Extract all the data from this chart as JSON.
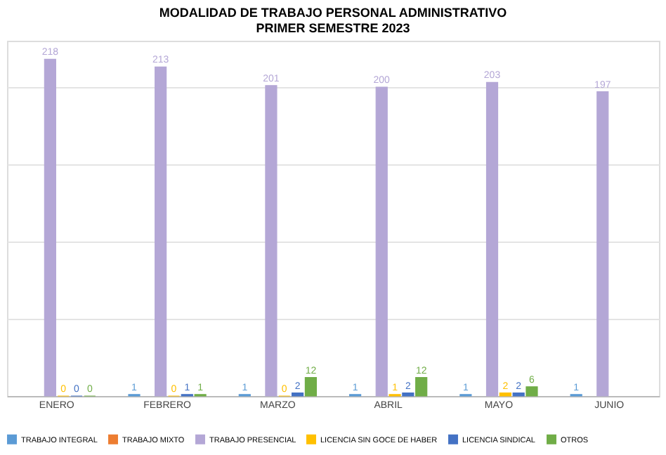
{
  "chart_data": {
    "type": "bar",
    "title": [
      "MODALIDAD DE TRABAJO PERSONAL ADMINISTRATIVO",
      "PRIMER SEMESTRE 2023"
    ],
    "categories": [
      "ENERO",
      "FEBRERO",
      "MARZO",
      "ABRIL",
      "MAYO",
      "JUNIO"
    ],
    "series": [
      {
        "name": "TRABAJO INTEGRAL",
        "color": "#5b9bd5",
        "values": [
          null,
          1,
          1,
          1,
          1,
          1
        ]
      },
      {
        "name": "TRABAJO MIXTO",
        "color": "#ed7d31",
        "values": [
          null,
          null,
          null,
          null,
          null,
          null
        ]
      },
      {
        "name": "TRABAJO PRESENCIAL",
        "color": "#b4a7d6",
        "values": [
          218,
          213,
          201,
          200,
          203,
          197
        ]
      },
      {
        "name": "LICENCIA SIN GOCE DE HABER",
        "color": "#ffc000",
        "values": [
          0,
          0,
          0,
          1,
          2,
          null
        ]
      },
      {
        "name": "LICENCIA SINDICAL",
        "color": "#4472c4",
        "values": [
          0,
          1,
          2,
          2,
          2,
          null
        ]
      },
      {
        "name": "OTROS",
        "color": "#70ad47",
        "values": [
          0,
          1,
          12,
          12,
          6,
          null
        ]
      }
    ],
    "ylim": [
      0,
      230
    ],
    "yticks": [
      {
        "value": 0,
        "label": null
      },
      {
        "value": 50,
        "label": null
      },
      {
        "value": 100,
        "label": null
      },
      {
        "value": 150,
        "label": null
      },
      {
        "value": 200,
        "label": null
      }
    ],
    "grid": "y",
    "legend": "bottom",
    "data_labels": true,
    "tick_labels": "x"
  }
}
